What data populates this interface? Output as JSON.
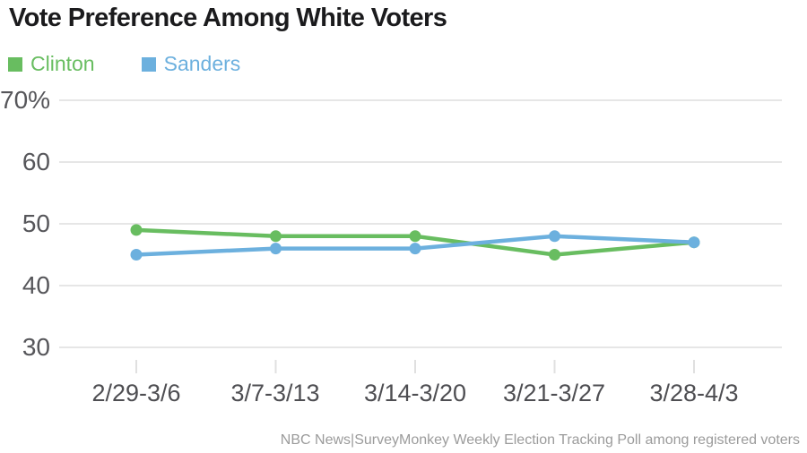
{
  "chart_data": {
    "type": "line",
    "title": "Vote Preference Among White Voters",
    "categories": [
      "2/29-3/6",
      "3/7-3/13",
      "3/14-3/20",
      "3/21-3/27",
      "3/28-4/3"
    ],
    "series": [
      {
        "name": "Clinton",
        "color": "#68bd60",
        "values": [
          49,
          48,
          48,
          45,
          47
        ]
      },
      {
        "name": "Sanders",
        "color": "#6cb0de",
        "values": [
          45,
          46,
          46,
          48,
          47
        ]
      }
    ],
    "xlabel": "",
    "ylabel": "",
    "ylim": [
      30,
      70
    ],
    "y_tick_step": 10,
    "y_tick_labels": [
      "70%",
      "60",
      "50",
      "40",
      "30"
    ],
    "grid": "horizontal",
    "legend_position": "top-left",
    "source_note": "NBC News|SurveyMonkey Weekly Election Tracking Poll among registered voters",
    "colors": {
      "grid": "#e6e6e6",
      "tick": "#e0e0e0",
      "title_text": "#1b1b1d",
      "axis_text": "#56565a",
      "note_text": "#9b9b9b"
    }
  }
}
